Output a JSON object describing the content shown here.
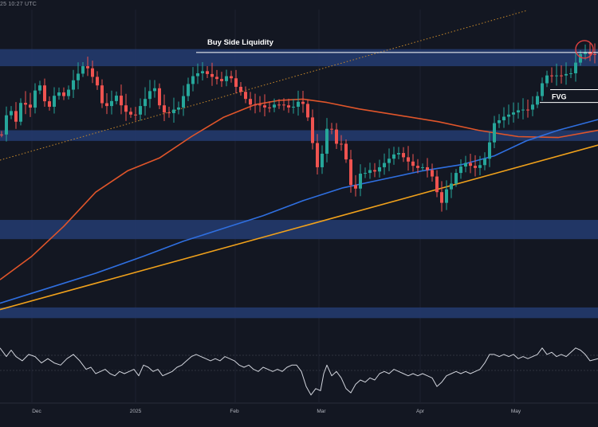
{
  "timestamp_text": "25 10:27 UTC",
  "colors": {
    "background": "#131722",
    "zone": "#23396b",
    "candle_up": "#26a69a",
    "candle_down": "#ef5350",
    "ema_fast": "#e0552a",
    "ema_slow": "#2f6fe0",
    "trendline": "#f0a11b",
    "trendline_dotted": "#c98a2b",
    "rsi": "#d1d4dc",
    "level_line": "#ffffff",
    "circle": "#e04040"
  },
  "chart_data": {
    "type": "candlestick",
    "x_labels": [
      "Dec",
      "2025",
      "Feb",
      "Mar",
      "Apr",
      "May"
    ],
    "annotations": [
      "Buy Side Liquidity",
      "FVG"
    ],
    "zones": [
      {
        "y1": 0.115,
        "y2": 0.155
      },
      {
        "y1": 0.305,
        "y2": 0.33
      },
      {
        "y1": 0.515,
        "y2": 0.56
      },
      {
        "y1": 0.72,
        "y2": 0.745
      }
    ],
    "candle_anchors": [
      [
        0,
        0.315
      ],
      [
        10,
        0.24
      ],
      [
        16,
        0.3
      ],
      [
        22,
        0.255
      ],
      [
        27,
        0.22
      ],
      [
        33,
        0.27
      ],
      [
        38,
        0.24
      ],
      [
        43,
        0.205
      ],
      [
        48,
        0.2
      ],
      [
        53,
        0.235
      ],
      [
        60,
        0.25
      ],
      [
        67,
        0.22
      ],
      [
        74,
        0.215
      ],
      [
        80,
        0.23
      ],
      [
        86,
        0.2
      ],
      [
        91,
        0.185
      ],
      [
        97,
        0.17
      ],
      [
        102,
        0.155
      ],
      [
        108,
        0.16
      ],
      [
        114,
        0.18
      ],
      [
        120,
        0.2
      ],
      [
        125,
        0.24
      ],
      [
        131,
        0.25
      ],
      [
        137,
        0.24
      ],
      [
        143,
        0.22
      ],
      [
        148,
        0.24
      ],
      [
        154,
        0.26
      ],
      [
        160,
        0.265
      ],
      [
        166,
        0.275
      ],
      [
        172,
        0.255
      ],
      [
        178,
        0.235
      ],
      [
        184,
        0.225
      ],
      [
        190,
        0.19
      ],
      [
        196,
        0.24
      ],
      [
        202,
        0.26
      ],
      [
        208,
        0.27
      ],
      [
        214,
        0.255
      ],
      [
        220,
        0.26
      ],
      [
        226,
        0.235
      ],
      [
        232,
        0.205
      ],
      [
        238,
        0.18
      ],
      [
        244,
        0.175
      ],
      [
        250,
        0.165
      ],
      [
        256,
        0.17
      ],
      [
        262,
        0.18
      ],
      [
        268,
        0.18
      ],
      [
        274,
        0.195
      ],
      [
        280,
        0.18
      ],
      [
        286,
        0.175
      ],
      [
        292,
        0.2
      ],
      [
        298,
        0.21
      ],
      [
        304,
        0.225
      ],
      [
        310,
        0.245
      ],
      [
        316,
        0.245
      ],
      [
        322,
        0.245
      ],
      [
        328,
        0.25
      ],
      [
        334,
        0.255
      ],
      [
        340,
        0.245
      ],
      [
        346,
        0.245
      ],
      [
        352,
        0.245
      ],
      [
        358,
        0.25
      ],
      [
        364,
        0.255
      ],
      [
        370,
        0.24
      ],
      [
        376,
        0.235
      ],
      [
        382,
        0.26
      ],
      [
        388,
        0.305
      ],
      [
        394,
        0.395
      ],
      [
        400,
        0.385
      ],
      [
        406,
        0.31
      ],
      [
        412,
        0.285
      ],
      [
        418,
        0.34
      ],
      [
        424,
        0.33
      ],
      [
        430,
        0.35
      ],
      [
        436,
        0.42
      ],
      [
        442,
        0.46
      ],
      [
        448,
        0.405
      ],
      [
        454,
        0.41
      ],
      [
        460,
        0.395
      ],
      [
        466,
        0.405
      ],
      [
        472,
        0.395
      ],
      [
        478,
        0.385
      ],
      [
        484,
        0.375
      ],
      [
        490,
        0.365
      ],
      [
        496,
        0.355
      ],
      [
        502,
        0.365
      ],
      [
        508,
        0.375
      ],
      [
        514,
        0.385
      ],
      [
        520,
        0.395
      ],
      [
        526,
        0.39
      ],
      [
        532,
        0.395
      ],
      [
        538,
        0.405
      ],
      [
        544,
        0.43
      ],
      [
        550,
        0.49
      ],
      [
        556,
        0.445
      ],
      [
        562,
        0.44
      ],
      [
        568,
        0.41
      ],
      [
        574,
        0.395
      ],
      [
        580,
        0.38
      ],
      [
        586,
        0.385
      ],
      [
        592,
        0.395
      ],
      [
        598,
        0.39
      ],
      [
        604,
        0.38
      ],
      [
        610,
        0.355
      ],
      [
        616,
        0.29
      ],
      [
        622,
        0.285
      ],
      [
        628,
        0.275
      ],
      [
        634,
        0.27
      ],
      [
        640,
        0.265
      ],
      [
        646,
        0.26
      ],
      [
        652,
        0.255
      ],
      [
        658,
        0.26
      ],
      [
        664,
        0.25
      ],
      [
        670,
        0.235
      ],
      [
        676,
        0.205
      ],
      [
        682,
        0.175
      ],
      [
        688,
        0.18
      ],
      [
        694,
        0.175
      ],
      [
        700,
        0.18
      ],
      [
        706,
        0.17
      ],
      [
        712,
        0.18
      ],
      [
        718,
        0.155
      ],
      [
        724,
        0.13
      ],
      [
        730,
        0.12
      ],
      [
        736,
        0.125
      ],
      [
        742,
        0.13
      ],
      [
        748,
        0.125
      ]
    ],
    "ema_fast": [
      [
        0,
        0.655
      ],
      [
        40,
        0.6
      ],
      [
        80,
        0.53
      ],
      [
        120,
        0.45
      ],
      [
        160,
        0.4
      ],
      [
        200,
        0.37
      ],
      [
        240,
        0.32
      ],
      [
        280,
        0.275
      ],
      [
        320,
        0.245
      ],
      [
        350,
        0.235
      ],
      [
        380,
        0.232
      ],
      [
        410,
        0.24
      ],
      [
        450,
        0.255
      ],
      [
        500,
        0.27
      ],
      [
        550,
        0.285
      ],
      [
        600,
        0.305
      ],
      [
        650,
        0.32
      ],
      [
        700,
        0.322
      ],
      [
        750,
        0.305
      ]
    ],
    "ema_slow": [
      [
        0,
        0.71
      ],
      [
        60,
        0.675
      ],
      [
        120,
        0.64
      ],
      [
        180,
        0.6
      ],
      [
        230,
        0.565
      ],
      [
        280,
        0.535
      ],
      [
        330,
        0.505
      ],
      [
        380,
        0.47
      ],
      [
        430,
        0.44
      ],
      [
        480,
        0.42
      ],
      [
        530,
        0.4
      ],
      [
        580,
        0.385
      ],
      [
        620,
        0.365
      ],
      [
        660,
        0.33
      ],
      [
        700,
        0.305
      ],
      [
        750,
        0.28
      ]
    ],
    "trendline": [
      [
        0,
        0.725
      ],
      [
        750,
        0.34
      ]
    ],
    "trendline_dotted": [
      [
        0,
        0.375
      ],
      [
        660,
        0.025
      ]
    ],
    "liquidity_level": 0.123,
    "fvg_lines": [
      0.21,
      0.24
    ],
    "rsi": [
      [
        0,
        0.815
      ],
      [
        8,
        0.835
      ],
      [
        14,
        0.82
      ],
      [
        20,
        0.835
      ],
      [
        28,
        0.845
      ],
      [
        36,
        0.83
      ],
      [
        44,
        0.835
      ],
      [
        52,
        0.85
      ],
      [
        60,
        0.84
      ],
      [
        68,
        0.85
      ],
      [
        76,
        0.855
      ],
      [
        84,
        0.84
      ],
      [
        92,
        0.83
      ],
      [
        100,
        0.845
      ],
      [
        108,
        0.865
      ],
      [
        114,
        0.86
      ],
      [
        120,
        0.875
      ],
      [
        126,
        0.87
      ],
      [
        132,
        0.865
      ],
      [
        138,
        0.875
      ],
      [
        144,
        0.88
      ],
      [
        150,
        0.87
      ],
      [
        156,
        0.875
      ],
      [
        162,
        0.87
      ],
      [
        168,
        0.865
      ],
      [
        174,
        0.88
      ],
      [
        180,
        0.855
      ],
      [
        186,
        0.86
      ],
      [
        192,
        0.87
      ],
      [
        198,
        0.865
      ],
      [
        204,
        0.88
      ],
      [
        210,
        0.875
      ],
      [
        216,
        0.87
      ],
      [
        222,
        0.86
      ],
      [
        228,
        0.855
      ],
      [
        234,
        0.845
      ],
      [
        240,
        0.835
      ],
      [
        246,
        0.83
      ],
      [
        252,
        0.835
      ],
      [
        258,
        0.84
      ],
      [
        264,
        0.845
      ],
      [
        270,
        0.84
      ],
      [
        276,
        0.845
      ],
      [
        282,
        0.835
      ],
      [
        288,
        0.84
      ],
      [
        294,
        0.845
      ],
      [
        300,
        0.855
      ],
      [
        306,
        0.86
      ],
      [
        312,
        0.855
      ],
      [
        318,
        0.865
      ],
      [
        324,
        0.87
      ],
      [
        330,
        0.86
      ],
      [
        336,
        0.865
      ],
      [
        342,
        0.87
      ],
      [
        348,
        0.865
      ],
      [
        354,
        0.87
      ],
      [
        360,
        0.86
      ],
      [
        366,
        0.855
      ],
      [
        372,
        0.855
      ],
      [
        378,
        0.87
      ],
      [
        384,
        0.905
      ],
      [
        390,
        0.925
      ],
      [
        396,
        0.91
      ],
      [
        402,
        0.915
      ],
      [
        406,
        0.875
      ],
      [
        410,
        0.855
      ],
      [
        416,
        0.88
      ],
      [
        422,
        0.87
      ],
      [
        428,
        0.885
      ],
      [
        434,
        0.91
      ],
      [
        440,
        0.92
      ],
      [
        446,
        0.9
      ],
      [
        452,
        0.89
      ],
      [
        458,
        0.895
      ],
      [
        464,
        0.885
      ],
      [
        470,
        0.89
      ],
      [
        476,
        0.875
      ],
      [
        482,
        0.87
      ],
      [
        488,
        0.875
      ],
      [
        494,
        0.865
      ],
      [
        500,
        0.87
      ],
      [
        506,
        0.875
      ],
      [
        512,
        0.88
      ],
      [
        518,
        0.875
      ],
      [
        524,
        0.88
      ],
      [
        530,
        0.875
      ],
      [
        536,
        0.88
      ],
      [
        542,
        0.885
      ],
      [
        548,
        0.905
      ],
      [
        554,
        0.895
      ],
      [
        560,
        0.88
      ],
      [
        566,
        0.875
      ],
      [
        572,
        0.87
      ],
      [
        578,
        0.875
      ],
      [
        584,
        0.87
      ],
      [
        590,
        0.875
      ],
      [
        596,
        0.87
      ],
      [
        602,
        0.865
      ],
      [
        608,
        0.85
      ],
      [
        614,
        0.83
      ],
      [
        620,
        0.83
      ],
      [
        626,
        0.835
      ],
      [
        632,
        0.83
      ],
      [
        638,
        0.835
      ],
      [
        644,
        0.83
      ],
      [
        650,
        0.84
      ],
      [
        656,
        0.835
      ],
      [
        662,
        0.84
      ],
      [
        668,
        0.835
      ],
      [
        674,
        0.83
      ],
      [
        680,
        0.815
      ],
      [
        686,
        0.83
      ],
      [
        692,
        0.825
      ],
      [
        698,
        0.835
      ],
      [
        704,
        0.83
      ],
      [
        710,
        0.835
      ],
      [
        716,
        0.825
      ],
      [
        722,
        0.815
      ],
      [
        728,
        0.82
      ],
      [
        734,
        0.83
      ],
      [
        740,
        0.845
      ],
      [
        750,
        0.84
      ]
    ]
  }
}
